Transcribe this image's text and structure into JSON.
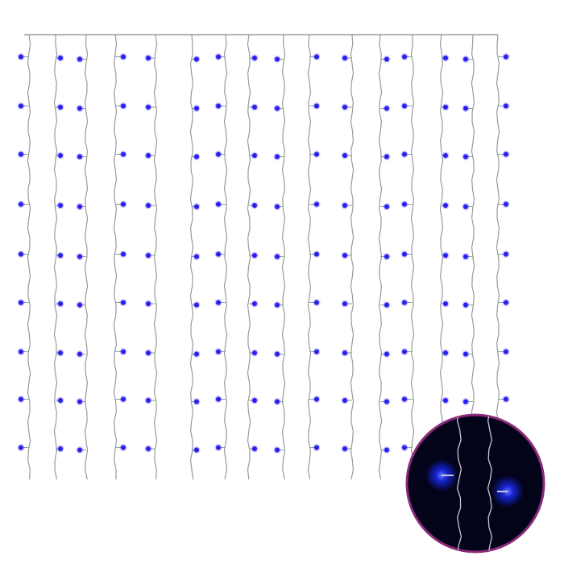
{
  "colors": {
    "background": "#ffffff",
    "wire": "#9a9a9a",
    "bulb": "#2a1ef0",
    "inset_background": "#03031a",
    "inset_border": "#8a2a7a",
    "inset_glow": "#1a2cff"
  },
  "product": {
    "bulb_rows": 9,
    "bulbs_per_row": 16
  }
}
